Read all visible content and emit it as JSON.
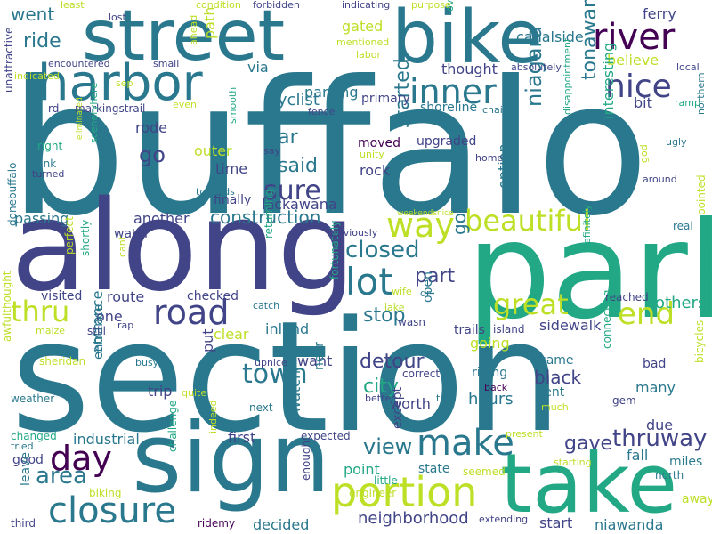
{
  "cloud": {
    "words": [
      {
        "text": "buffalo",
        "color": "#2a788e"
      },
      {
        "text": "section",
        "color": "#2a788e"
      },
      {
        "text": "park",
        "color": "#22a884"
      },
      {
        "text": "along",
        "color": "#414487"
      },
      {
        "text": "sign",
        "color": "#2a788e"
      },
      {
        "text": "take",
        "color": "#22a884"
      },
      {
        "text": "street",
        "color": "#2a788e"
      },
      {
        "text": "bike",
        "color": "#2a788e"
      },
      {
        "text": "harbor",
        "color": "#2a788e"
      },
      {
        "text": "portion",
        "color": "#bddf26"
      },
      {
        "text": "closure",
        "color": "#2a788e"
      },
      {
        "text": "make",
        "color": "#2a788e"
      },
      {
        "text": "road",
        "color": "#414487"
      },
      {
        "text": "lot",
        "color": "#2a788e"
      },
      {
        "text": "way",
        "color": "#bddf26"
      },
      {
        "text": "day",
        "color": "#440154"
      },
      {
        "text": "river",
        "color": "#440154"
      },
      {
        "text": "inner",
        "color": "#2a788e"
      },
      {
        "text": "nice",
        "color": "#414487"
      },
      {
        "text": "end",
        "color": "#bddf26"
      },
      {
        "text": "great",
        "color": "#bddf26"
      },
      {
        "text": "thru",
        "color": "#bddf26"
      },
      {
        "text": "beautiful",
        "color": "#bddf26"
      },
      {
        "text": "sure",
        "color": "#414487"
      },
      {
        "text": "construction",
        "color": "#2a788e"
      },
      {
        "text": "town",
        "color": "#2a788e"
      },
      {
        "text": "closed",
        "color": "#2a788e"
      },
      {
        "text": "area",
        "color": "#2a788e"
      },
      {
        "text": "thruway",
        "color": "#414487"
      },
      {
        "text": "view",
        "color": "#2a788e"
      },
      {
        "text": "gave",
        "color": "#414487"
      },
      {
        "text": "city",
        "color": "#22a884"
      },
      {
        "text": "stop",
        "color": "#2a788e"
      },
      {
        "text": "part",
        "color": "#414487"
      },
      {
        "text": "detour",
        "color": "#414487"
      },
      {
        "text": "ride",
        "color": "#2a788e"
      },
      {
        "text": "go",
        "color": "#414487"
      },
      {
        "text": "car",
        "color": "#2a788e"
      },
      {
        "text": "said",
        "color": "#2a788e"
      },
      {
        "text": "went",
        "color": "#2a788e"
      },
      {
        "text": "niagara",
        "color": "#2a788e"
      },
      {
        "text": "tonawanda",
        "color": "#2a788e"
      },
      {
        "text": "started",
        "color": "#2a788e"
      },
      {
        "text": "got",
        "color": "#2a788e"
      },
      {
        "text": "black",
        "color": "#414487"
      },
      {
        "text": "hours",
        "color": "#2a788e"
      },
      {
        "text": "many",
        "color": "#2a788e"
      },
      {
        "text": "neighborhood",
        "color": "#414487"
      },
      {
        "text": "niawanda",
        "color": "#2a788e"
      },
      {
        "text": "industrial",
        "color": "#2a788e"
      },
      {
        "text": "lackawana",
        "color": "#414487"
      },
      {
        "text": "canalside",
        "color": "#2a788e"
      },
      {
        "text": "parking",
        "color": "#2a788e"
      },
      {
        "text": "cyclist",
        "color": "#2a788e"
      },
      {
        "text": "sidewalk",
        "color": "#414487"
      },
      {
        "text": "outer",
        "color": "#bddf26"
      },
      {
        "text": "time",
        "color": "#414487"
      },
      {
        "text": "gated",
        "color": "#bddf26"
      },
      {
        "text": "thought",
        "color": "#414487"
      },
      {
        "text": "believe",
        "color": "#bddf26"
      },
      {
        "text": "ferry",
        "color": "#414487"
      },
      {
        "text": "bit",
        "color": "#414487"
      },
      {
        "text": "rode",
        "color": "#414487"
      },
      {
        "text": "via",
        "color": "#2a788e"
      },
      {
        "text": "path",
        "color": "#bddf26"
      },
      {
        "text": "passing",
        "color": "#2a788e"
      },
      {
        "text": "another",
        "color": "#414487"
      },
      {
        "text": "route",
        "color": "#414487"
      },
      {
        "text": "inland",
        "color": "#2a788e"
      },
      {
        "text": "clear",
        "color": "#bddf26"
      },
      {
        "text": "first",
        "color": "#414487"
      },
      {
        "text": "trip",
        "color": "#414487"
      },
      {
        "text": "watch",
        "color": "#2a788e"
      },
      {
        "text": "want",
        "color": "#414487"
      },
      {
        "text": "near",
        "color": "#2a788e"
      },
      {
        "text": "entrance",
        "color": "#2a788e"
      },
      {
        "text": "worth",
        "color": "#414487"
      },
      {
        "text": "except",
        "color": "#414487"
      },
      {
        "text": "open",
        "color": "#2a788e"
      },
      {
        "text": "option",
        "color": "#2a788e"
      },
      {
        "text": "state",
        "color": "#2a788e"
      },
      {
        "text": "point",
        "color": "#22a884"
      },
      {
        "text": "fall",
        "color": "#2a788e"
      },
      {
        "text": "due",
        "color": "#414487"
      },
      {
        "text": "start",
        "color": "#414487"
      },
      {
        "text": "good",
        "color": "#414487"
      },
      {
        "text": "leave",
        "color": "#2a788e"
      },
      {
        "text": "rock",
        "color": "#414487"
      },
      {
        "text": "one",
        "color": "#414487"
      },
      {
        "text": "put",
        "color": "#414487"
      },
      {
        "text": "going",
        "color": "#bddf26"
      },
      {
        "text": "finally",
        "color": "#414487"
      },
      {
        "text": "water",
        "color": "#414487"
      },
      {
        "text": "miles",
        "color": "#2a788e"
      },
      {
        "text": "decided",
        "color": "#2a788e"
      },
      {
        "text": "interesting",
        "color": "#22a884"
      },
      {
        "text": "primary",
        "color": "#414487"
      },
      {
        "text": "shoreline",
        "color": "#2a788e"
      },
      {
        "text": "upgraded",
        "color": "#414487"
      },
      {
        "text": "moved",
        "color": "#440154"
      },
      {
        "text": "checked",
        "color": "#414487"
      },
      {
        "text": "visited",
        "color": "#414487"
      },
      {
        "text": "returning",
        "color": "#22a884"
      },
      {
        "text": "fortunately",
        "color": "#22a884"
      },
      {
        "text": "trails",
        "color": "#414487"
      },
      {
        "text": "island",
        "color": "#414487"
      },
      {
        "text": "entrance",
        "color": "#2a788e"
      },
      {
        "text": "connecting",
        "color": "#22a884"
      },
      {
        "text": "came",
        "color": "#2a788e"
      },
      {
        "text": "sent",
        "color": "#2a788e"
      },
      {
        "text": "riding",
        "color": "#2a788e"
      },
      {
        "text": "correct",
        "color": "#414487"
      },
      {
        "text": "expected",
        "color": "#414487"
      },
      {
        "text": "challenge",
        "color": "#22a884"
      },
      {
        "text": "engineer",
        "color": "#bddf26"
      },
      {
        "text": "biking",
        "color": "#bddf26"
      },
      {
        "text": "third",
        "color": "#414487"
      },
      {
        "text": "ridemy",
        "color": "#440154"
      },
      {
        "text": "enough",
        "color": "#414487"
      },
      {
        "text": "little",
        "color": "#22a884"
      },
      {
        "text": "seemed",
        "color": "#bddf26"
      },
      {
        "text": "starting",
        "color": "#bddf26"
      },
      {
        "text": "extending",
        "color": "#414487"
      },
      {
        "text": "away",
        "color": "#bddf26"
      },
      {
        "text": "north",
        "color": "#2a788e"
      },
      {
        "text": "others",
        "color": "#22a884"
      },
      {
        "text": "reached",
        "color": "#414487"
      },
      {
        "text": "pointed",
        "color": "#bddf26"
      },
      {
        "text": "real",
        "color": "#2a788e"
      },
      {
        "text": "bicycles",
        "color": "#bddf26"
      },
      {
        "text": "bad",
        "color": "#414487"
      },
      {
        "text": "gem",
        "color": "#414487"
      },
      {
        "text": "much",
        "color": "#bddf26"
      },
      {
        "text": "back",
        "color": "#440154"
      },
      {
        "text": "better",
        "color": "#414487"
      },
      {
        "text": "present",
        "color": "#bddf26"
      },
      {
        "text": "tried",
        "color": "#2a788e"
      },
      {
        "text": "changed",
        "color": "#22a884"
      },
      {
        "text": "weather",
        "color": "#2a788e"
      },
      {
        "text": "awfulthought",
        "color": "#bddf26"
      },
      {
        "text": "sheridan",
        "color": "#bddf26"
      },
      {
        "text": "maize",
        "color": "#bddf26"
      },
      {
        "text": "still",
        "color": "#414487"
      },
      {
        "text": "busy",
        "color": "#2a788e"
      },
      {
        "text": "quite",
        "color": "#bddf26"
      },
      {
        "text": "next",
        "color": "#2a788e"
      },
      {
        "text": "indeed",
        "color": "#bddf26"
      },
      {
        "text": "upnice",
        "color": "#414487"
      },
      {
        "text": "wasn",
        "color": "#414487"
      },
      {
        "text": "lake",
        "color": "#bddf26"
      },
      {
        "text": "wife",
        "color": "#bddf26"
      },
      {
        "text": "dr",
        "color": "#2a788e"
      },
      {
        "text": "catch",
        "color": "#2a788e"
      },
      {
        "text": "rap",
        "color": "#414487"
      },
      {
        "text": "cant",
        "color": "#bddf26"
      },
      {
        "text": "shortly",
        "color": "#22a884"
      },
      {
        "text": "perfect",
        "color": "#bddf26"
      },
      {
        "text": "donebuffalo",
        "color": "#2a788e"
      },
      {
        "text": "unattractive",
        "color": "#414487"
      },
      {
        "text": "turned",
        "color": "#414487"
      },
      {
        "text": "link",
        "color": "#2a788e"
      },
      {
        "text": "right",
        "color": "#22a884"
      },
      {
        "text": "rd",
        "color": "#414487"
      },
      {
        "text": "markingstrail",
        "color": "#414487"
      },
      {
        "text": "sep",
        "color": "#bddf26"
      },
      {
        "text": "even",
        "color": "#bddf26"
      },
      {
        "text": "encountered",
        "color": "#414487"
      },
      {
        "text": "indicated",
        "color": "#bddf26"
      },
      {
        "text": "small",
        "color": "#414487"
      },
      {
        "text": "least",
        "color": "#bddf26"
      },
      {
        "text": "lost",
        "color": "#414487"
      },
      {
        "text": "ahead",
        "color": "#bddf26"
      },
      {
        "text": "condition",
        "color": "#bddf26"
      },
      {
        "text": "forbidden",
        "color": "#414487"
      },
      {
        "text": "indicating",
        "color": "#414487"
      },
      {
        "text": "purpose",
        "color": "#bddf26"
      },
      {
        "text": "overpass",
        "color": "#22a884"
      },
      {
        "text": "mentioned",
        "color": "#bddf26"
      },
      {
        "text": "labor",
        "color": "#bddf26"
      },
      {
        "text": "absolutely",
        "color": "#414487"
      },
      {
        "text": "local",
        "color": "#414487"
      },
      {
        "text": "ramp",
        "color": "#22a884"
      },
      {
        "text": "chain",
        "color": "#2a788e"
      },
      {
        "text": "fence",
        "color": "#414487"
      },
      {
        "text": "smooth",
        "color": "#22a884"
      },
      {
        "text": "say",
        "color": "#414487"
      },
      {
        "text": "unity",
        "color": "#bddf26"
      },
      {
        "text": "st",
        "color": "#2a788e"
      },
      {
        "text": "home",
        "color": "#414487"
      },
      {
        "text": "disappointment",
        "color": "#22a884"
      },
      {
        "text": "god",
        "color": "#bddf26"
      },
      {
        "text": "ugly",
        "color": "#2a788e"
      },
      {
        "text": "around",
        "color": "#414487"
      },
      {
        "text": "northern",
        "color": "#2a788e"
      },
      {
        "text": "definitely",
        "color": "#22a884"
      },
      {
        "text": "obviously",
        "color": "#414487"
      },
      {
        "text": "weekendsnice",
        "color": "#bddf26"
      },
      {
        "text": "towards",
        "color": "#2a788e"
      },
      {
        "text": "sceneryhere",
        "color": "#22a884"
      },
      {
        "text": "eliminated",
        "color": "#bddf26"
      },
      {
        "text": "t",
        "color": "#2a788e"
      }
    ]
  }
}
